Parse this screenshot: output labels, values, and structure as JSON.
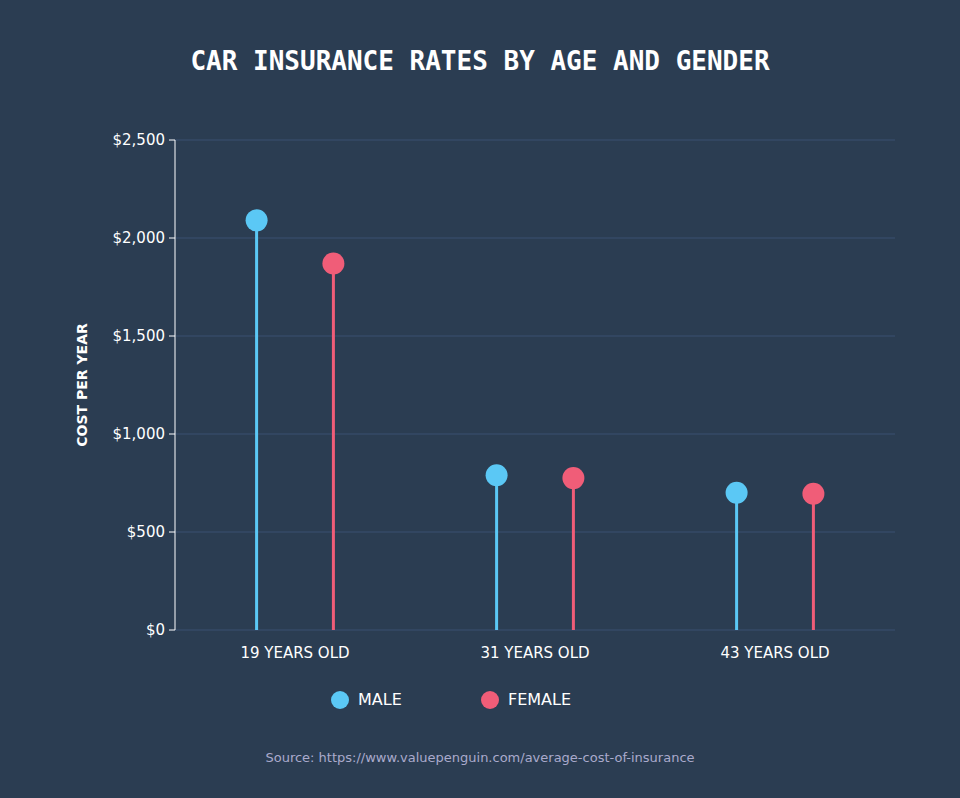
{
  "chart_data": {
    "type": "lollipop",
    "title": "CAR INSURANCE RATES BY AGE AND GENDER",
    "y_label": "COST PER YEAR",
    "source": "Source: https://www.valuepenguin.com/average-cost-of-insurance",
    "categories": [
      "19 YEARS OLD",
      "31 YEARS OLD",
      "43 YEARS OLD"
    ],
    "series": [
      {
        "name": "MALE",
        "color": "#5BC8F5",
        "values": [
          2090,
          790,
          700
        ]
      },
      {
        "name": "FEMALE",
        "color": "#F05D78",
        "values": [
          1870,
          775,
          695
        ]
      }
    ],
    "ylim": [
      0,
      2500
    ],
    "yticks": [
      {
        "value": 0,
        "label": "$0"
      },
      {
        "value": 500,
        "label": "$500"
      },
      {
        "value": 1000,
        "label": "$1,000"
      },
      {
        "value": 1500,
        "label": "$1,500"
      },
      {
        "value": 2000,
        "label": "$2,000"
      },
      {
        "value": 2500,
        "label": "$2,500"
      }
    ],
    "grid": true,
    "legend": "bottom"
  }
}
